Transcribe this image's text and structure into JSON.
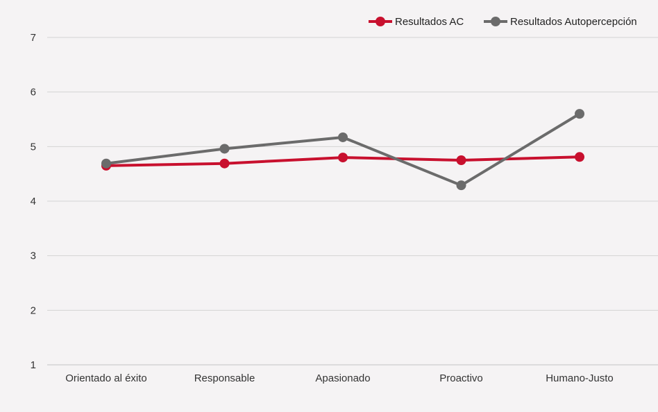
{
  "chart_data": {
    "type": "line",
    "categories": [
      "Orientado al éxito",
      "Responsable",
      "Apasionado",
      "Proactivo",
      "Humano-Justo"
    ],
    "series": [
      {
        "name": "Resultados AC",
        "color": "#c8102e",
        "values": [
          4.65,
          4.69,
          4.8,
          4.75,
          4.81
        ]
      },
      {
        "name": "Resultados Autopercepción",
        "color": "#6b6b6b",
        "values": [
          4.69,
          4.96,
          5.17,
          4.29,
          5.6
        ]
      }
    ],
    "ylim": [
      1,
      7
    ],
    "yticks": [
      "1",
      "2",
      "3",
      "4",
      "5",
      "6",
      "7"
    ],
    "grid": true,
    "legend_position": "top-right",
    "background": "#f5f3f4",
    "grid_color": "#d3d3d3"
  }
}
